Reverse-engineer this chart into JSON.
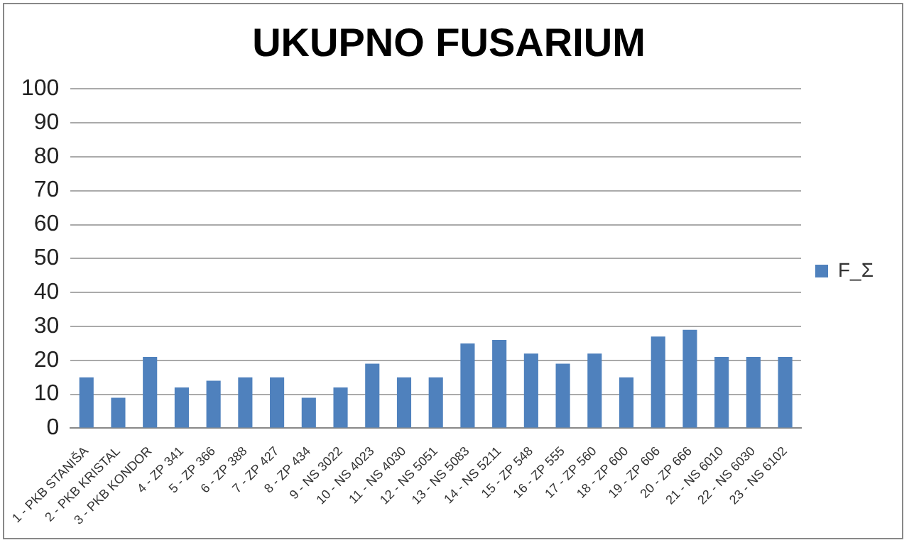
{
  "chart_data": {
    "type": "bar",
    "title": "UKUPNO FUSARIUM",
    "categories": [
      "1 - PKB STANIŠA",
      "2 - PKB KRISTAL",
      "3 - PKB KONDOR",
      "4 - ZP 341",
      "5 - ZP 366",
      "6 - ZP 388",
      "7 - ZP 427",
      "8 - ZP 434",
      "9 - NS 3022",
      "10 - NS 4023",
      "11 - NS 4030",
      "12 - NS 5051",
      "13 - NS 5083",
      "14 - NS 5211",
      "15 - ZP 548",
      "16 - ZP 555",
      "17 - ZP 560",
      "18 - ZP 600",
      "19 - ZP 606",
      "20 - ZP 666",
      "21 - NS 6010",
      "22 - NS 6030",
      "23 - NS 6102"
    ],
    "series": [
      {
        "name": "F_Σ",
        "color": "#4f81bd",
        "values": [
          15,
          9,
          21,
          12,
          14,
          15,
          15,
          9,
          12,
          19,
          15,
          15,
          25,
          26,
          22,
          19,
          22,
          15,
          27,
          29,
          21,
          21,
          21
        ]
      }
    ],
    "ylim": [
      0,
      100
    ],
    "yticks": [
      0,
      10,
      20,
      30,
      40,
      50,
      60,
      70,
      80,
      90,
      100
    ],
    "grid": "y",
    "legend": "right"
  }
}
